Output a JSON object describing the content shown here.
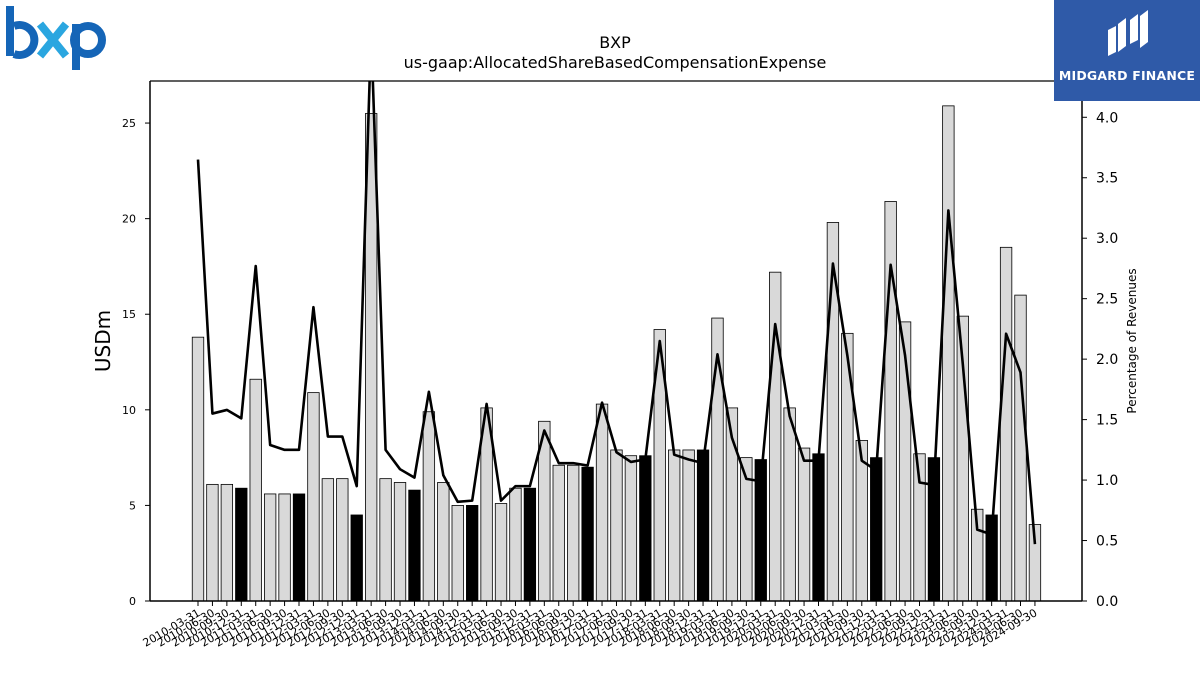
{
  "header": {
    "left_logo_text": "bxp",
    "left_logo_color_b": "#1565b7",
    "left_logo_color_x": "#2aa6e0",
    "right_logo_text": "MIDGARD FINANCE",
    "right_logo_bg": "#2f5aa8"
  },
  "chart_data": {
    "type": "bar",
    "title": "BXP",
    "subtitle": "us-gaap:AllocatedShareBasedCompensationExpense",
    "ylabel": "USDm",
    "y2label": "Percentage of Revenues",
    "ylim": [
      0,
      27.2
    ],
    "y2lim": [
      0,
      4.3
    ],
    "yticks": [
      0,
      5,
      10,
      15,
      20,
      25
    ],
    "y2ticks": [
      0.0,
      0.5,
      1.0,
      1.5,
      2.0,
      2.5,
      3.0,
      3.5,
      4.0
    ],
    "categories": [
      "2010-03-31",
      "2010-06-30",
      "2010-09-30",
      "2010-12-31",
      "2011-03-31",
      "2011-06-30",
      "2011-09-30",
      "2011-12-31",
      "2012-03-31",
      "2012-06-30",
      "2012-09-30",
      "2012-12-31",
      "2013-03-31",
      "2013-06-30",
      "2013-09-30",
      "2013-12-31",
      "2014-03-31",
      "2014-06-30",
      "2014-09-30",
      "2014-12-31",
      "2015-03-31",
      "2015-06-30",
      "2015-09-30",
      "2015-12-31",
      "2016-03-31",
      "2016-06-30",
      "2016-09-30",
      "2016-12-31",
      "2017-03-31",
      "2017-06-30",
      "2017-09-30",
      "2017-12-31",
      "2018-03-31",
      "2018-06-30",
      "2018-09-30",
      "2018-12-31",
      "2019-03-31",
      "2019-06-30",
      "2019-09-30",
      "2019-12-31",
      "2020-03-31",
      "2020-06-30",
      "2020-09-30",
      "2020-12-31",
      "2021-03-31",
      "2021-06-30",
      "2021-09-30",
      "2021-12-31",
      "2022-03-31",
      "2022-06-30",
      "2022-09-30",
      "2022-12-31",
      "2023-03-31",
      "2023-06-30",
      "2023-09-30",
      "2023-12-31",
      "2024-03-31",
      "2024-06-30",
      "2024-09-30"
    ],
    "series": [
      {
        "type": "bar",
        "axis": "left",
        "values": [
          13.8,
          6.1,
          6.1,
          5.9,
          11.6,
          5.6,
          5.6,
          5.6,
          10.9,
          6.4,
          6.4,
          4.5,
          25.5,
          6.4,
          6.2,
          5.8,
          9.9,
          6.2,
          5.0,
          5.0,
          10.1,
          5.1,
          5.9,
          5.9,
          9.4,
          7.1,
          7.1,
          7.0,
          10.3,
          7.9,
          7.6,
          7.6,
          14.2,
          7.9,
          7.9,
          7.9,
          14.8,
          10.1,
          7.5,
          7.4,
          17.2,
          10.1,
          8.0,
          7.7,
          19.8,
          14.0,
          8.4,
          7.5,
          20.9,
          14.6,
          7.7,
          7.5,
          25.9,
          14.9,
          4.8,
          4.5,
          18.5,
          16.0,
          4.0
        ],
        "highlight_index_note": "year-end quarters drawn in black",
        "colors": {
          "normal": "#d9d9d9",
          "highlight": "#000000",
          "edge": "#000000"
        }
      },
      {
        "type": "line",
        "axis": "right",
        "color": "#000000",
        "values": [
          3.65,
          1.55,
          1.58,
          1.51,
          2.77,
          1.29,
          1.25,
          1.25,
          2.43,
          1.36,
          1.36,
          0.95,
          4.7,
          1.25,
          1.09,
          1.02,
          1.73,
          1.04,
          0.82,
          0.83,
          1.63,
          0.83,
          0.95,
          0.95,
          1.41,
          1.14,
          1.14,
          1.12,
          1.64,
          1.23,
          1.15,
          1.17,
          2.15,
          1.21,
          1.17,
          1.14,
          2.04,
          1.35,
          1.01,
          0.99,
          2.29,
          1.53,
          1.16,
          1.16,
          2.79,
          2.03,
          1.16,
          1.08,
          2.78,
          2.03,
          0.98,
          0.96,
          3.23,
          1.96,
          0.59,
          0.55,
          2.21,
          1.89,
          0.47
        ]
      }
    ],
    "legend": "none",
    "grid": false
  }
}
